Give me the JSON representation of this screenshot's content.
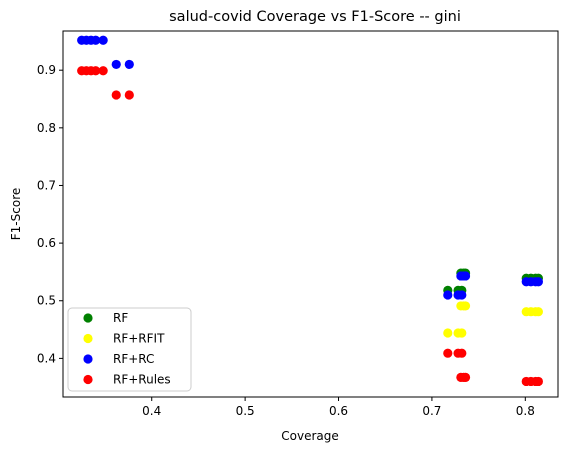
{
  "chart_data": {
    "type": "scatter",
    "title": "salud-covid Coverage vs F1-Score -- gini",
    "xlabel": "Coverage",
    "ylabel": "F1-Score",
    "xlim": [
      0.305,
      0.835
    ],
    "ylim": [
      0.333,
      0.968
    ],
    "xticks": [
      0.4,
      0.5,
      0.6,
      0.7,
      0.8
    ],
    "xtick_labels": [
      "0.4",
      "0.5",
      "0.6",
      "0.7",
      "0.8"
    ],
    "yticks": [
      0.4,
      0.5,
      0.6,
      0.7,
      0.8,
      0.9
    ],
    "ytick_labels": [
      "0.4",
      "0.5",
      "0.6",
      "0.7",
      "0.8",
      "0.9"
    ],
    "grid": false,
    "legend_position": "lower left",
    "series": [
      {
        "name": "RF",
        "color": "#008000",
        "points": [
          [
            0.717,
            0.518
          ],
          [
            0.728,
            0.518
          ],
          [
            0.732,
            0.518
          ],
          [
            0.731,
            0.548
          ],
          [
            0.734,
            0.548
          ],
          [
            0.736,
            0.548
          ],
          [
            0.801,
            0.539
          ],
          [
            0.806,
            0.539
          ],
          [
            0.811,
            0.539
          ],
          [
            0.814,
            0.539
          ]
        ]
      },
      {
        "name": "RF+RFIT",
        "color": "#ffff00",
        "points": [
          [
            0.717,
            0.444
          ],
          [
            0.728,
            0.444
          ],
          [
            0.732,
            0.444
          ],
          [
            0.731,
            0.491
          ],
          [
            0.734,
            0.491
          ],
          [
            0.736,
            0.491
          ],
          [
            0.801,
            0.481
          ],
          [
            0.806,
            0.481
          ],
          [
            0.811,
            0.481
          ],
          [
            0.814,
            0.481
          ]
        ]
      },
      {
        "name": "RF+RC",
        "color": "#0000ff",
        "points": [
          [
            0.325,
            0.952
          ],
          [
            0.33,
            0.952
          ],
          [
            0.335,
            0.952
          ],
          [
            0.34,
            0.952
          ],
          [
            0.348,
            0.952
          ],
          [
            0.362,
            0.91
          ],
          [
            0.376,
            0.91
          ],
          [
            0.717,
            0.51
          ],
          [
            0.728,
            0.51
          ],
          [
            0.732,
            0.51
          ],
          [
            0.731,
            0.543
          ],
          [
            0.734,
            0.543
          ],
          [
            0.736,
            0.543
          ],
          [
            0.801,
            0.533
          ],
          [
            0.806,
            0.533
          ],
          [
            0.811,
            0.533
          ],
          [
            0.814,
            0.533
          ]
        ]
      },
      {
        "name": "RF+Rules",
        "color": "#ff0000",
        "points": [
          [
            0.325,
            0.899
          ],
          [
            0.33,
            0.899
          ],
          [
            0.335,
            0.899
          ],
          [
            0.34,
            0.899
          ],
          [
            0.348,
            0.899
          ],
          [
            0.362,
            0.857
          ],
          [
            0.376,
            0.857
          ],
          [
            0.717,
            0.409
          ],
          [
            0.728,
            0.409
          ],
          [
            0.732,
            0.409
          ],
          [
            0.731,
            0.367
          ],
          [
            0.734,
            0.367
          ],
          [
            0.736,
            0.367
          ],
          [
            0.801,
            0.36
          ],
          [
            0.806,
            0.36
          ],
          [
            0.811,
            0.36
          ],
          [
            0.814,
            0.36
          ]
        ]
      }
    ]
  }
}
